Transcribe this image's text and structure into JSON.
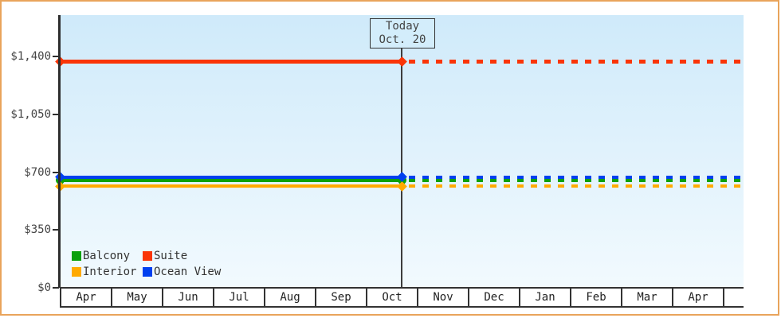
{
  "window": {
    "background": "#ffffff",
    "border_color": "#e9a45b"
  },
  "chart_data": {
    "type": "line",
    "title": "",
    "plot_background_top": "#cfeafa",
    "plot_background_bottom": "#f2fafe",
    "axis_color": "#2e2e2e",
    "x_axis": {
      "categories": [
        "Apr",
        "May",
        "Jun",
        "Jul",
        "Aug",
        "Sep",
        "Oct",
        "Nov",
        "Dec",
        "Jan",
        "Feb",
        "Mar",
        "Apr"
      ]
    },
    "y_axis": {
      "ticks": [
        {
          "label": "$1,400",
          "value": 1400
        },
        {
          "label": "$1,050",
          "value": 1050
        },
        {
          "label": "$700",
          "value": 700
        },
        {
          "label": "$350",
          "value": 350
        },
        {
          "label": "$0",
          "value": 0
        }
      ],
      "range": [
        0,
        1650
      ]
    },
    "today_annotation": {
      "line1": "Today",
      "line2": "Oct. 20",
      "box_fill": "#d3edfb"
    },
    "line_style": {
      "before_today": "solid",
      "after_today": "dotted"
    },
    "series": [
      {
        "name": "Balcony",
        "color": "#0aa00a",
        "value": 650,
        "marker": "circle",
        "thickness": 4
      },
      {
        "name": "Suite",
        "color": "#fa3507",
        "value": 1370,
        "marker": "diamond",
        "thickness": 5
      },
      {
        "name": "Interior",
        "color": "#ffaa00",
        "value": 615,
        "marker": "diamond",
        "thickness": 4
      },
      {
        "name": "Ocean View",
        "color": "#0040f0",
        "value": 671,
        "marker": "diamond",
        "thickness": 4
      }
    ],
    "legend": {
      "position": "bottom-left",
      "items": [
        {
          "label": "Balcony",
          "color": "#0aa00a"
        },
        {
          "label": "Suite",
          "color": "#fa3507"
        },
        {
          "label": "Interior",
          "color": "#ffaa00"
        },
        {
          "label": "Ocean View",
          "color": "#0040f0"
        }
      ]
    }
  }
}
